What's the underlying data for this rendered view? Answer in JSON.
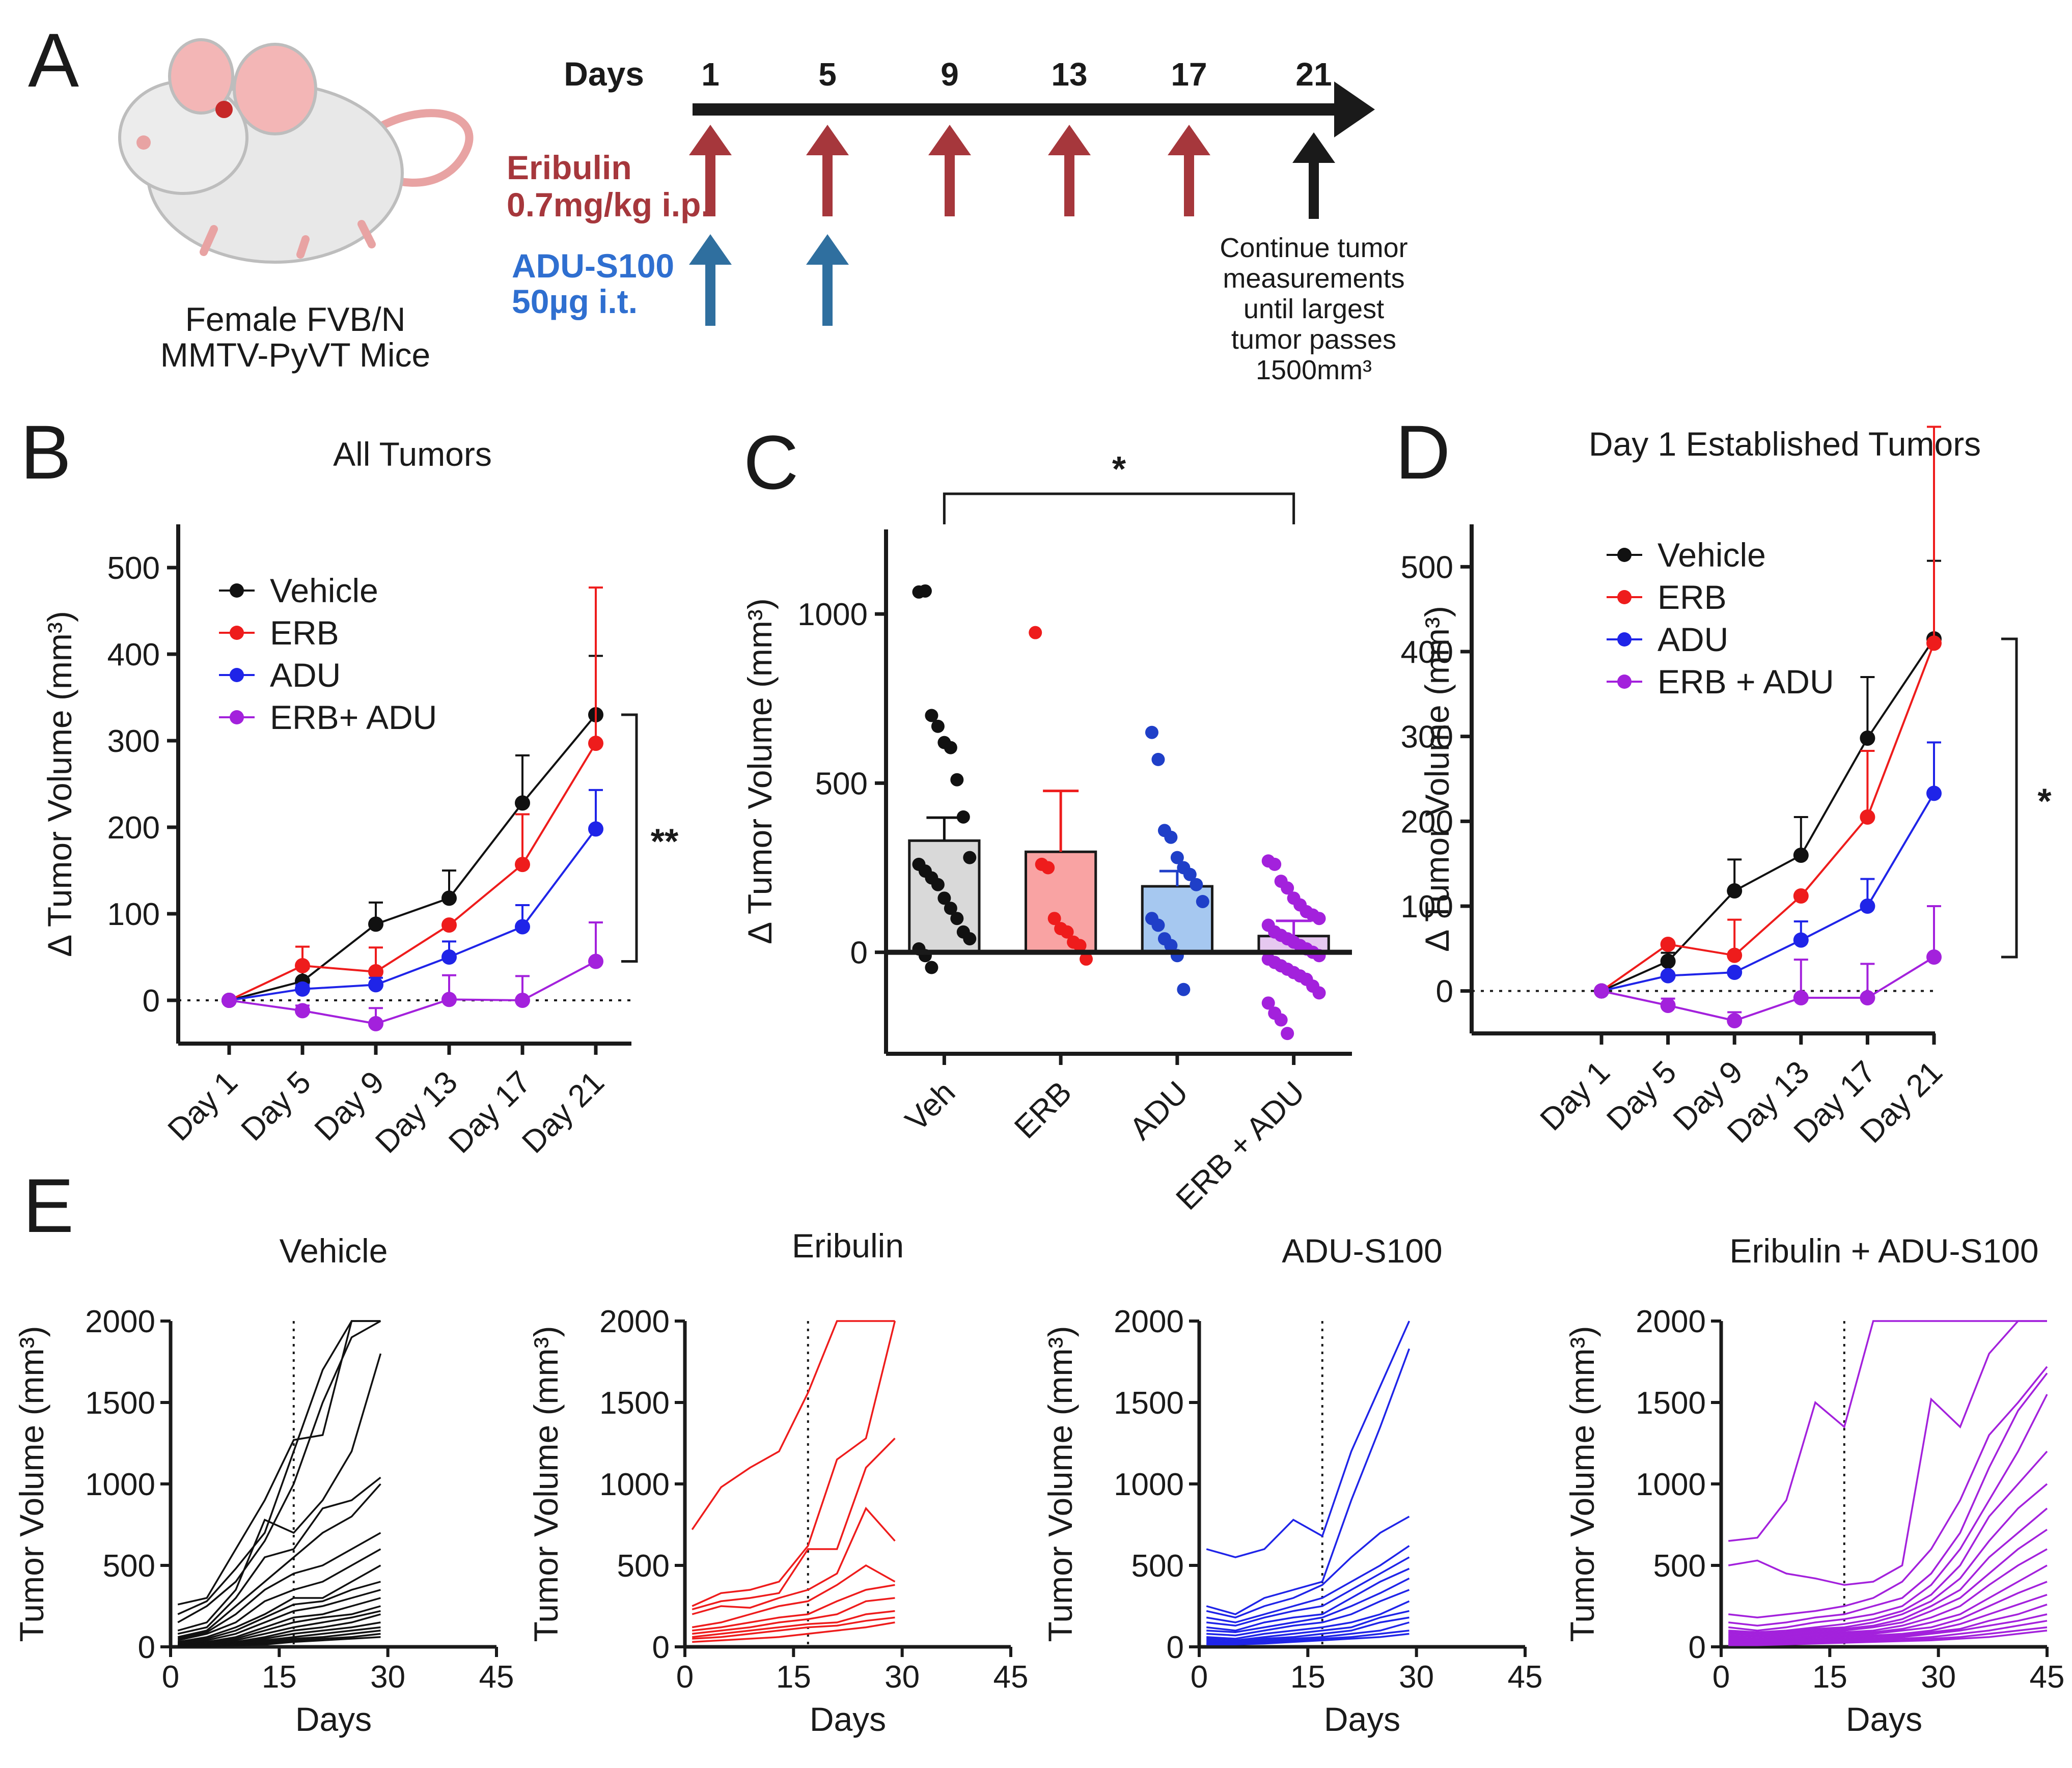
{
  "figure": {
    "panel_labels": [
      "A",
      "B",
      "C",
      "D",
      "E"
    ]
  },
  "timeline": {
    "days_label": "Days",
    "days": [
      "1",
      "5",
      "9",
      "13",
      "17",
      "21"
    ],
    "eribulin_label_1": "Eribulin",
    "eribulin_label_2": "0.7mg/kg i.p.",
    "adu_label_1": "ADU-S100",
    "adu_label_2": "50µg i.t.",
    "mouse_caption_1": "Female FVB/N",
    "mouse_caption_2": "MMTV-PyVT Mice",
    "continue_note": [
      "Continue tumor",
      "measurements",
      "until largest",
      "tumor passes",
      "1500mm³"
    ],
    "colors": {
      "eribulin": "#a6373c",
      "adu": "#2f6f9f",
      "axis": "#1a1a1a"
    }
  },
  "chart_data": [
    {
      "id": "B",
      "type": "line",
      "title": "All Tumors",
      "xlabel": "",
      "ylabel": "Δ Tumor Volume (mm³)",
      "categories": [
        "Day 1",
        "Day 5",
        "Day 9",
        "Day 13",
        "Day 17",
        "Day 21"
      ],
      "ylim": [
        -50,
        550
      ],
      "yticks": [
        "0",
        "100",
        "200",
        "300",
        "400",
        "500"
      ],
      "legend_position": "top-left",
      "significance": "**",
      "series": [
        {
          "name": "Vehicle",
          "color": "#111111",
          "values": [
            0,
            22,
            88,
            118,
            228,
            330
          ],
          "errors": [
            0,
            15,
            25,
            32,
            55,
            68
          ]
        },
        {
          "name": "ERB",
          "color": "#ee1c1c",
          "values": [
            0,
            40,
            33,
            87,
            157,
            297
          ],
          "errors": [
            0,
            22,
            28,
            0,
            58,
            180
          ]
        },
        {
          "name": "ADU",
          "color": "#1f24e8",
          "values": [
            0,
            13,
            18,
            50,
            85,
            198
          ],
          "errors": [
            0,
            5,
            8,
            18,
            25,
            45
          ]
        },
        {
          "name": "ERB+ ADU",
          "color": "#a321dc",
          "values": [
            0,
            -12,
            -27,
            1,
            0,
            45
          ],
          "errors": [
            0,
            6,
            18,
            28,
            28,
            45
          ]
        }
      ]
    },
    {
      "id": "C",
      "type": "bar",
      "title": "",
      "ylabel": "Δ Tumor Volume (mm³)",
      "categories": [
        "Veh",
        "ERB",
        "ADU",
        "ERB + ADU"
      ],
      "values": [
        330,
        297,
        195,
        48
      ],
      "errors": [
        68,
        180,
        45,
        45
      ],
      "ylim": [
        -300,
        1250
      ],
      "yticks": [
        "0",
        "500",
        "1000"
      ],
      "significance": "*",
      "bar_colors": [
        "#d9d9d9",
        "#f9a3a3",
        "#a6c8f0",
        "#e6c8f0"
      ],
      "dot_colors": [
        "#111111",
        "#ee1c1c",
        "#1f3fc8",
        "#a321dc"
      ],
      "points": [
        [
          1065,
          1068,
          700,
          668,
          620,
          605,
          510,
          400,
          280,
          260,
          240,
          220,
          200,
          160,
          130,
          100,
          60,
          40,
          10,
          -10,
          -45
        ],
        [
          945,
          260,
          250,
          100,
          70,
          60,
          30,
          20,
          -20
        ],
        [
          650,
          570,
          360,
          340,
          280,
          250,
          230,
          200,
          150,
          100,
          80,
          40,
          20,
          -10,
          -110
        ],
        [
          270,
          260,
          210,
          190,
          160,
          140,
          120,
          110,
          100,
          80,
          60,
          50,
          40,
          30,
          20,
          10,
          0,
          -10,
          -20,
          -30,
          -40,
          -50,
          -60,
          -70,
          -80,
          -100,
          -120,
          -150,
          -180,
          -200,
          -240
        ]
      ]
    },
    {
      "id": "D",
      "type": "line",
      "title": "Day 1 Established Tumors",
      "xlabel": "",
      "ylabel": "Δ Tumor Volume (mm³)",
      "categories": [
        "Day 1",
        "Day 5",
        "Day 9",
        "Day 13",
        "Day 17",
        "Day 21"
      ],
      "ylim": [
        -50,
        550
      ],
      "yticks": [
        "0",
        "100",
        "200",
        "300",
        "400",
        "500"
      ],
      "legend_position": "top-left",
      "significance": "*",
      "series": [
        {
          "name": "Vehicle",
          "color": "#111111",
          "values": [
            0,
            35,
            118,
            160,
            298,
            415
          ],
          "errors": [
            0,
            10,
            37,
            45,
            72,
            92
          ]
        },
        {
          "name": "ERB",
          "color": "#ee1c1c",
          "values": [
            0,
            55,
            42,
            112,
            205,
            410
          ],
          "errors": [
            0,
            0,
            42,
            0,
            78,
            255
          ]
        },
        {
          "name": "ADU",
          "color": "#1f24e8",
          "values": [
            0,
            18,
            22,
            60,
            100,
            233
          ],
          "errors": [
            0,
            0,
            0,
            22,
            32,
            60
          ]
        },
        {
          "name": "ERB + ADU",
          "color": "#a321dc",
          "values": [
            0,
            -17,
            -35,
            -8,
            -8,
            40
          ],
          "errors": [
            0,
            8,
            10,
            45,
            40,
            60
          ]
        }
      ]
    },
    {
      "id": "E1",
      "type": "line",
      "title": "Vehicle",
      "xlabel": "Days",
      "ylabel": "Tumor Volume (mm³)",
      "xlim": [
        0,
        45
      ],
      "ylim": [
        0,
        2000
      ],
      "xticks": [
        "0",
        "15",
        "30",
        "45"
      ],
      "yticks": [
        "0",
        "500",
        "1000",
        "1500",
        "2000"
      ],
      "color": "#111111",
      "treatment_end_day": 17,
      "days": [
        1,
        5,
        9,
        13,
        17,
        21,
        25,
        29
      ],
      "series": [
        [
          260,
          300,
          600,
          900,
          1270,
          1300,
          2000,
          2000
        ],
        [
          200,
          280,
          480,
          700,
          1200,
          1700,
          2000,
          2000
        ],
        [
          150,
          250,
          400,
          650,
          1000,
          1500,
          1900,
          2000
        ],
        [
          100,
          150,
          350,
          780,
          700,
          900,
          1200,
          1800
        ],
        [
          80,
          120,
          300,
          550,
          600,
          850,
          900,
          1040
        ],
        [
          60,
          100,
          250,
          400,
          550,
          700,
          800,
          1000
        ],
        [
          50,
          90,
          200,
          350,
          450,
          500,
          600,
          700
        ],
        [
          40,
          80,
          150,
          280,
          350,
          400,
          500,
          600
        ],
        [
          30,
          60,
          120,
          200,
          300,
          300,
          400,
          500
        ],
        [
          25,
          50,
          100,
          180,
          260,
          280,
          350,
          400
        ],
        [
          20,
          40,
          80,
          150,
          220,
          250,
          300,
          350
        ],
        [
          15,
          30,
          60,
          120,
          180,
          200,
          250,
          300
        ],
        [
          10,
          25,
          50,
          100,
          150,
          180,
          200,
          250
        ],
        [
          8,
          20,
          40,
          80,
          120,
          150,
          180,
          220
        ],
        [
          5,
          15,
          30,
          60,
          100,
          120,
          150,
          200
        ],
        [
          5,
          10,
          25,
          50,
          80,
          100,
          120,
          150
        ],
        [
          3,
          8,
          20,
          40,
          60,
          80,
          100,
          120
        ],
        [
          2,
          5,
          15,
          30,
          50,
          60,
          80,
          100
        ],
        [
          2,
          5,
          10,
          20,
          40,
          50,
          60,
          80
        ],
        [
          1,
          3,
          8,
          15,
          30,
          40,
          50,
          60
        ]
      ]
    },
    {
      "id": "E2",
      "type": "line",
      "title": "Eribulin",
      "xlabel": "Days",
      "ylabel": "Tumor Volume (mm³)",
      "xlim": [
        0,
        45
      ],
      "ylim": [
        0,
        2000
      ],
      "xticks": [
        "0",
        "15",
        "30",
        "45"
      ],
      "yticks": [
        "0",
        "500",
        "1000",
        "1500",
        "2000"
      ],
      "color": "#ee1c1c",
      "treatment_end_day": 17,
      "days": [
        1,
        5,
        9,
        13,
        17,
        21,
        25,
        29
      ],
      "series": [
        [
          720,
          980,
          1100,
          1200,
          1560,
          2000,
          2000,
          2000
        ],
        [
          250,
          330,
          350,
          400,
          620,
          1150,
          1280,
          2000
        ],
        [
          230,
          280,
          300,
          330,
          600,
          600,
          1100,
          1280
        ],
        [
          200,
          250,
          240,
          300,
          350,
          450,
          850,
          650
        ],
        [
          120,
          150,
          200,
          250,
          280,
          380,
          500,
          400
        ],
        [
          100,
          120,
          150,
          180,
          200,
          280,
          350,
          380
        ],
        [
          80,
          100,
          120,
          150,
          170,
          200,
          280,
          300
        ],
        [
          60,
          80,
          100,
          120,
          140,
          150,
          200,
          220
        ],
        [
          50,
          60,
          80,
          100,
          120,
          130,
          160,
          180
        ],
        [
          30,
          40,
          50,
          60,
          80,
          100,
          120,
          150
        ]
      ]
    },
    {
      "id": "E3",
      "type": "line",
      "title": "ADU-S100",
      "xlabel": "Days",
      "ylabel": "Tumor Volume (mm³)",
      "xlim": [
        0,
        45
      ],
      "ylim": [
        0,
        2000
      ],
      "xticks": [
        "0",
        "15",
        "30",
        "45"
      ],
      "yticks": [
        "0",
        "500",
        "1000",
        "1500",
        "2000"
      ],
      "color": "#1f24e8",
      "treatment_end_day": 17,
      "days": [
        1,
        5,
        9,
        13,
        17,
        21,
        25,
        29
      ],
      "series": [
        [
          600,
          550,
          600,
          780,
          680,
          1200,
          1600,
          2000
        ],
        [
          250,
          200,
          300,
          350,
          400,
          900,
          1350,
          1830
        ],
        [
          220,
          180,
          250,
          300,
          380,
          550,
          700,
          800
        ],
        [
          180,
          150,
          200,
          250,
          300,
          400,
          500,
          620
        ],
        [
          150,
          130,
          180,
          220,
          250,
          350,
          450,
          550
        ],
        [
          120,
          100,
          150,
          180,
          200,
          300,
          400,
          480
        ],
        [
          100,
          90,
          120,
          150,
          180,
          250,
          330,
          420
        ],
        [
          80,
          70,
          100,
          130,
          150,
          200,
          280,
          350
        ],
        [
          60,
          50,
          80,
          100,
          120,
          150,
          200,
          280
        ],
        [
          50,
          40,
          60,
          80,
          100,
          120,
          180,
          220
        ],
        [
          40,
          30,
          50,
          60,
          80,
          100,
          150,
          180
        ],
        [
          30,
          25,
          40,
          50,
          60,
          80,
          100,
          150
        ],
        [
          20,
          20,
          30,
          40,
          50,
          60,
          80,
          100
        ],
        [
          15,
          15,
          20,
          30,
          40,
          50,
          60,
          80
        ]
      ]
    },
    {
      "id": "E4",
      "type": "line",
      "title": "Eribulin + ADU-S100",
      "xlabel": "Days",
      "ylabel": "Tumor Volume (mm³)",
      "xlim": [
        0,
        45
      ],
      "ylim": [
        0,
        2000
      ],
      "xticks": [
        "0",
        "15",
        "30",
        "45"
      ],
      "yticks": [
        "0",
        "500",
        "1000",
        "1500",
        "2000"
      ],
      "color": "#a321dc",
      "treatment_end_day": 17,
      "days": [
        1,
        5,
        9,
        13,
        17,
        21,
        25,
        29,
        33,
        37,
        41,
        45
      ],
      "series": [
        [
          650,
          670,
          900,
          1500,
          1350,
          2000,
          2000,
          2000,
          2000,
          2000,
          2000,
          2000
        ],
        [
          500,
          530,
          450,
          420,
          380,
          400,
          500,
          1520,
          1350,
          1800,
          2000,
          2000
        ],
        [
          200,
          180,
          200,
          220,
          250,
          300,
          400,
          600,
          900,
          1300,
          1500,
          1720
        ],
        [
          150,
          130,
          150,
          180,
          200,
          250,
          300,
          450,
          700,
          1100,
          1450,
          1680
        ],
        [
          120,
          100,
          120,
          150,
          170,
          200,
          250,
          380,
          600,
          900,
          1200,
          1550
        ],
        [
          100,
          90,
          100,
          120,
          140,
          170,
          220,
          320,
          500,
          800,
          1000,
          1200
        ],
        [
          90,
          80,
          90,
          110,
          120,
          150,
          200,
          280,
          420,
          650,
          850,
          1000
        ],
        [
          80,
          70,
          80,
          100,
          110,
          130,
          170,
          250,
          350,
          550,
          700,
          850
        ],
        [
          70,
          60,
          70,
          90,
          100,
          120,
          150,
          220,
          300,
          450,
          600,
          720
        ],
        [
          60,
          50,
          60,
          80,
          90,
          100,
          130,
          180,
          250,
          380,
          500,
          600
        ],
        [
          50,
          45,
          50,
          70,
          80,
          90,
          110,
          150,
          200,
          300,
          400,
          500
        ],
        [
          40,
          40,
          45,
          60,
          70,
          80,
          100,
          120,
          170,
          250,
          330,
          400
        ],
        [
          35,
          30,
          40,
          50,
          60,
          70,
          80,
          100,
          140,
          200,
          260,
          320
        ],
        [
          30,
          25,
          35,
          45,
          50,
          60,
          70,
          90,
          110,
          160,
          200,
          260
        ],
        [
          25,
          20,
          30,
          40,
          45,
          50,
          60,
          80,
          100,
          130,
          160,
          200
        ],
        [
          20,
          18,
          25,
          30,
          40,
          45,
          50,
          60,
          80,
          100,
          130,
          160
        ],
        [
          15,
          15,
          20,
          25,
          30,
          35,
          40,
          50,
          60,
          80,
          100,
          120
        ],
        [
          10,
          10,
          15,
          20,
          25,
          30,
          35,
          40,
          50,
          60,
          80,
          100
        ]
      ]
    }
  ]
}
